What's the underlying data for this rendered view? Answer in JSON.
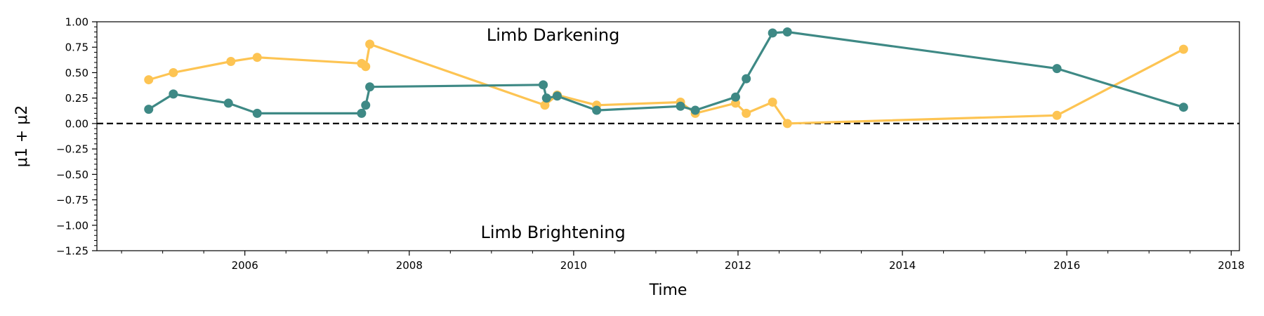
{
  "chart_data": {
    "type": "line",
    "xlabel": "Time",
    "ylabel": "μ1 + μ2",
    "xlim": [
      2004.2,
      2018.1
    ],
    "ylim": [
      -1.25,
      1.0
    ],
    "x_ticks": [
      2006,
      2008,
      2010,
      2012,
      2014,
      2016,
      2018
    ],
    "y_ticks": [
      1.0,
      0.75,
      0.5,
      0.25,
      0.0,
      -0.25,
      -0.5,
      -0.75,
      -1.0,
      -1.25
    ],
    "y_tick_labels": [
      "1.00",
      "0.75",
      "0.50",
      "0.25",
      "0.00",
      "−0.25",
      "−0.50",
      "−0.75",
      "−1.00",
      "−1.25"
    ],
    "reference_line": {
      "y": 0.0,
      "style": "dashed",
      "color": "#000000"
    },
    "annotations": [
      {
        "text": "Limb Darkening",
        "x": 2009.75,
        "y": 0.87
      },
      {
        "text": "Limb Brightening",
        "x": 2009.75,
        "y": -1.07
      }
    ],
    "series": [
      {
        "color": "#fdc453",
        "x": [
          2004.83,
          2005.13,
          2005.83,
          2006.15,
          2007.42,
          2007.47,
          2007.52,
          2009.65,
          2009.8,
          2010.28,
          2011.3,
          2011.48,
          2011.97,
          2012.1,
          2012.42,
          2012.6,
          2015.88,
          2017.42
        ],
        "y": [
          0.43,
          0.5,
          0.61,
          0.65,
          0.59,
          0.56,
          0.78,
          0.18,
          0.28,
          0.18,
          0.21,
          0.1,
          0.2,
          0.1,
          0.21,
          0.0,
          0.08,
          0.73
        ]
      },
      {
        "color": "#3e8985",
        "x": [
          2004.83,
          2005.13,
          2005.8,
          2006.15,
          2007.42,
          2007.47,
          2007.52,
          2009.63,
          2009.67,
          2009.8,
          2010.28,
          2011.3,
          2011.48,
          2011.97,
          2012.1,
          2012.42,
          2012.6,
          2015.88,
          2017.42
        ],
        "y": [
          0.14,
          0.29,
          0.2,
          0.1,
          0.1,
          0.18,
          0.36,
          0.38,
          0.25,
          0.27,
          0.13,
          0.17,
          0.13,
          0.26,
          0.44,
          0.89,
          0.9,
          0.54,
          0.16
        ]
      }
    ]
  }
}
